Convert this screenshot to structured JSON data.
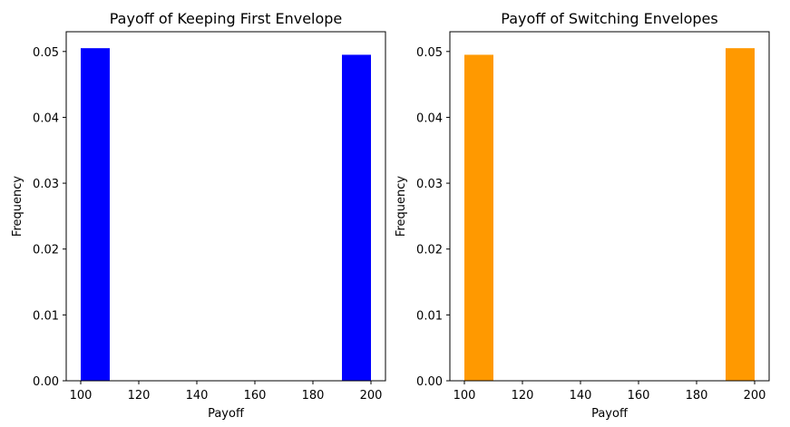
{
  "chart_data": [
    {
      "type": "bar",
      "title": "Payoff of Keeping First Envelope",
      "xlabel": "Payoff",
      "ylabel": "Frequency",
      "xlim": [
        95,
        205
      ],
      "ylim": [
        0,
        0.053
      ],
      "xticks": [
        100,
        120,
        140,
        160,
        180,
        200
      ],
      "xtick_labels": [
        "100",
        "120",
        "140",
        "160",
        "180",
        "200"
      ],
      "yticks": [
        0.0,
        0.01,
        0.02,
        0.03,
        0.04,
        0.05
      ],
      "ytick_labels": [
        "0.00",
        "0.01",
        "0.02",
        "0.03",
        "0.04",
        "0.05"
      ],
      "color": "#0000ff",
      "grid": false,
      "bins": [
        {
          "x0": 100,
          "x1": 110,
          "value": 0.0505
        },
        {
          "x0": 190,
          "x1": 200,
          "value": 0.0495
        }
      ]
    },
    {
      "type": "bar",
      "title": "Payoff of Switching Envelopes",
      "xlabel": "Payoff",
      "ylabel": "Frequency",
      "xlim": [
        95,
        205
      ],
      "ylim": [
        0,
        0.053
      ],
      "xticks": [
        100,
        120,
        140,
        160,
        180,
        200
      ],
      "xtick_labels": [
        "100",
        "120",
        "140",
        "160",
        "180",
        "200"
      ],
      "yticks": [
        0.0,
        0.01,
        0.02,
        0.03,
        0.04,
        0.05
      ],
      "ytick_labels": [
        "0.00",
        "0.01",
        "0.02",
        "0.03",
        "0.04",
        "0.05"
      ],
      "color": "#ff9900",
      "grid": false,
      "bins": [
        {
          "x0": 100,
          "x1": 110,
          "value": 0.0495
        },
        {
          "x0": 190,
          "x1": 200,
          "value": 0.0505
        }
      ]
    }
  ]
}
